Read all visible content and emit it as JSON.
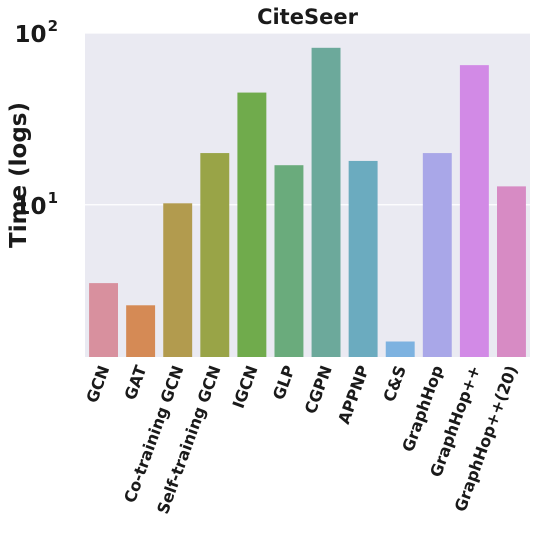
{
  "chart_data": {
    "type": "bar",
    "title": "CiteSeer",
    "xlabel": "",
    "ylabel": "Time (logs)",
    "yscale": "log",
    "ylim": [
      1.3,
      100
    ],
    "yticks": [
      {
        "value": 10,
        "base": "10",
        "exp": "1"
      },
      {
        "value": 100,
        "base": "10",
        "exp": "2"
      }
    ],
    "grid": true,
    "background": "#eaeaf2",
    "categories": [
      "GCN",
      "GAT",
      "Co-training GCN",
      "Self-training GCN",
      "IGCN",
      "GLP",
      "CGPN",
      "APPNP",
      "C&S",
      "GraphHop",
      "GraphHop++",
      "GraphHop++(20)"
    ],
    "values": [
      3.5,
      2.6,
      10.2,
      20.0,
      45.0,
      17.0,
      82.0,
      18.0,
      1.6,
      20.0,
      65.0,
      12.8
    ],
    "colors": [
      "#d8909e",
      "#d58a55",
      "#b29b4e",
      "#99a447",
      "#70ab4c",
      "#6aab7c",
      "#6ca99b",
      "#6babbf",
      "#7db2e0",
      "#a9a7e8",
      "#d28ae6",
      "#d78bc4"
    ]
  }
}
